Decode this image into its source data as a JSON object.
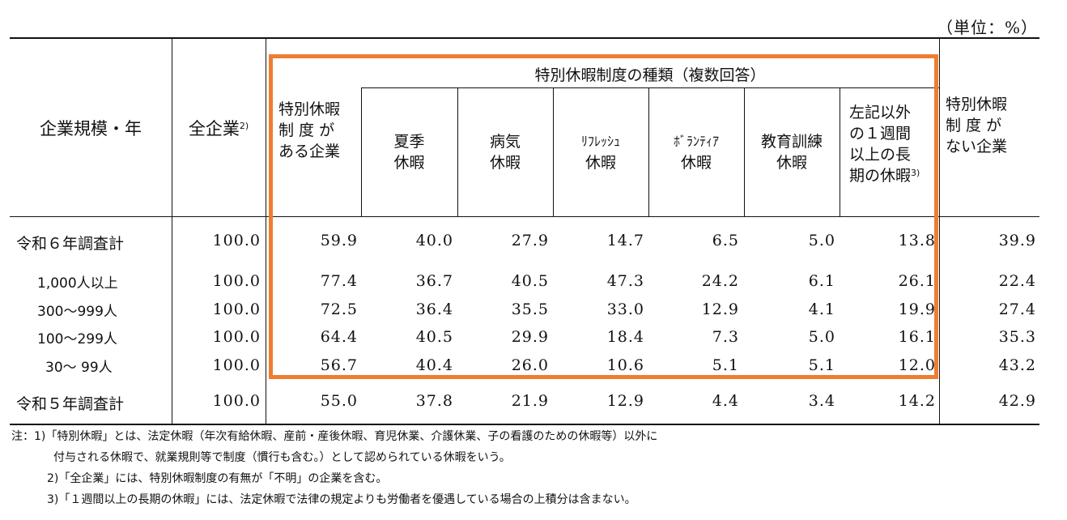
{
  "unit_label": "（単位：%）",
  "header": {
    "col_size_year": "企業規模・年",
    "col_all": "全企業",
    "col_all_note": "2)",
    "group_title": "特別休暇制度の種類（複数回答）",
    "col_has": [
      "特別休暇",
      "制 度 が",
      "ある企業"
    ],
    "col_summer": [
      "夏季",
      "休暇"
    ],
    "col_sick": [
      "病気",
      "休暇"
    ],
    "col_refresh": [
      "ﾘﾌﾚｯｼｭ",
      "休暇"
    ],
    "col_volunteer": [
      "ﾎﾞﾗﾝﾃｨｱ",
      "休暇"
    ],
    "col_edu": [
      "教育訓練",
      "休暇"
    ],
    "col_other": [
      "左記以外",
      "の１週間",
      "以上の長",
      "期の休暇"
    ],
    "col_other_note": "3)",
    "col_none": [
      "特別休暇",
      "制 度 が",
      "ない企業"
    ]
  },
  "rows": [
    {
      "label": "令和６年調査計",
      "values": [
        "100.0",
        "59.9",
        "40.0",
        "27.9",
        "14.7",
        "6.5",
        "5.0",
        "13.8",
        "39.9"
      ]
    },
    {
      "label": "1,000人以上",
      "values": [
        "100.0",
        "77.4",
        "36.7",
        "40.5",
        "47.3",
        "24.2",
        "6.1",
        "26.1",
        "22.4"
      ]
    },
    {
      "label": "300～999人",
      "values": [
        "100.0",
        "72.5",
        "36.4",
        "35.5",
        "33.0",
        "12.9",
        "4.1",
        "19.9",
        "27.4"
      ]
    },
    {
      "label": "100～299人",
      "values": [
        "100.0",
        "64.4",
        "40.5",
        "29.9",
        "18.4",
        "7.3",
        "5.0",
        "16.1",
        "35.3"
      ]
    },
    {
      "label": "30～ 99人",
      "values": [
        "100.0",
        "56.7",
        "40.4",
        "26.0",
        "10.6",
        "5.1",
        "5.1",
        "12.0",
        "43.2"
      ]
    },
    {
      "label": "令和５年調査計",
      "values": [
        "100.0",
        "55.0",
        "37.8",
        "21.9",
        "12.9",
        "4.4",
        "3.4",
        "14.2",
        "42.9"
      ]
    }
  ],
  "notes": [
    "注：1)「特別休暇」とは、法定休暇（年次有給休暇、産前・産後休暇、育児休業、介護休業、子の看護のための休暇等）以外に",
    "付与される休暇で、就業規則等で制度（慣行も含む。）として認められている休暇をいう。",
    "2)「全企業」には、特別休暇制度の有無が「不明」の企業を含む。",
    "3)「１週間以上の長期の休暇」には、法定休暇で法律の規定よりも労働者を優遇している場合の上積分は含まない。"
  ],
  "colors": {
    "highlight_box": "#ee7d30",
    "rule": "#111111"
  }
}
